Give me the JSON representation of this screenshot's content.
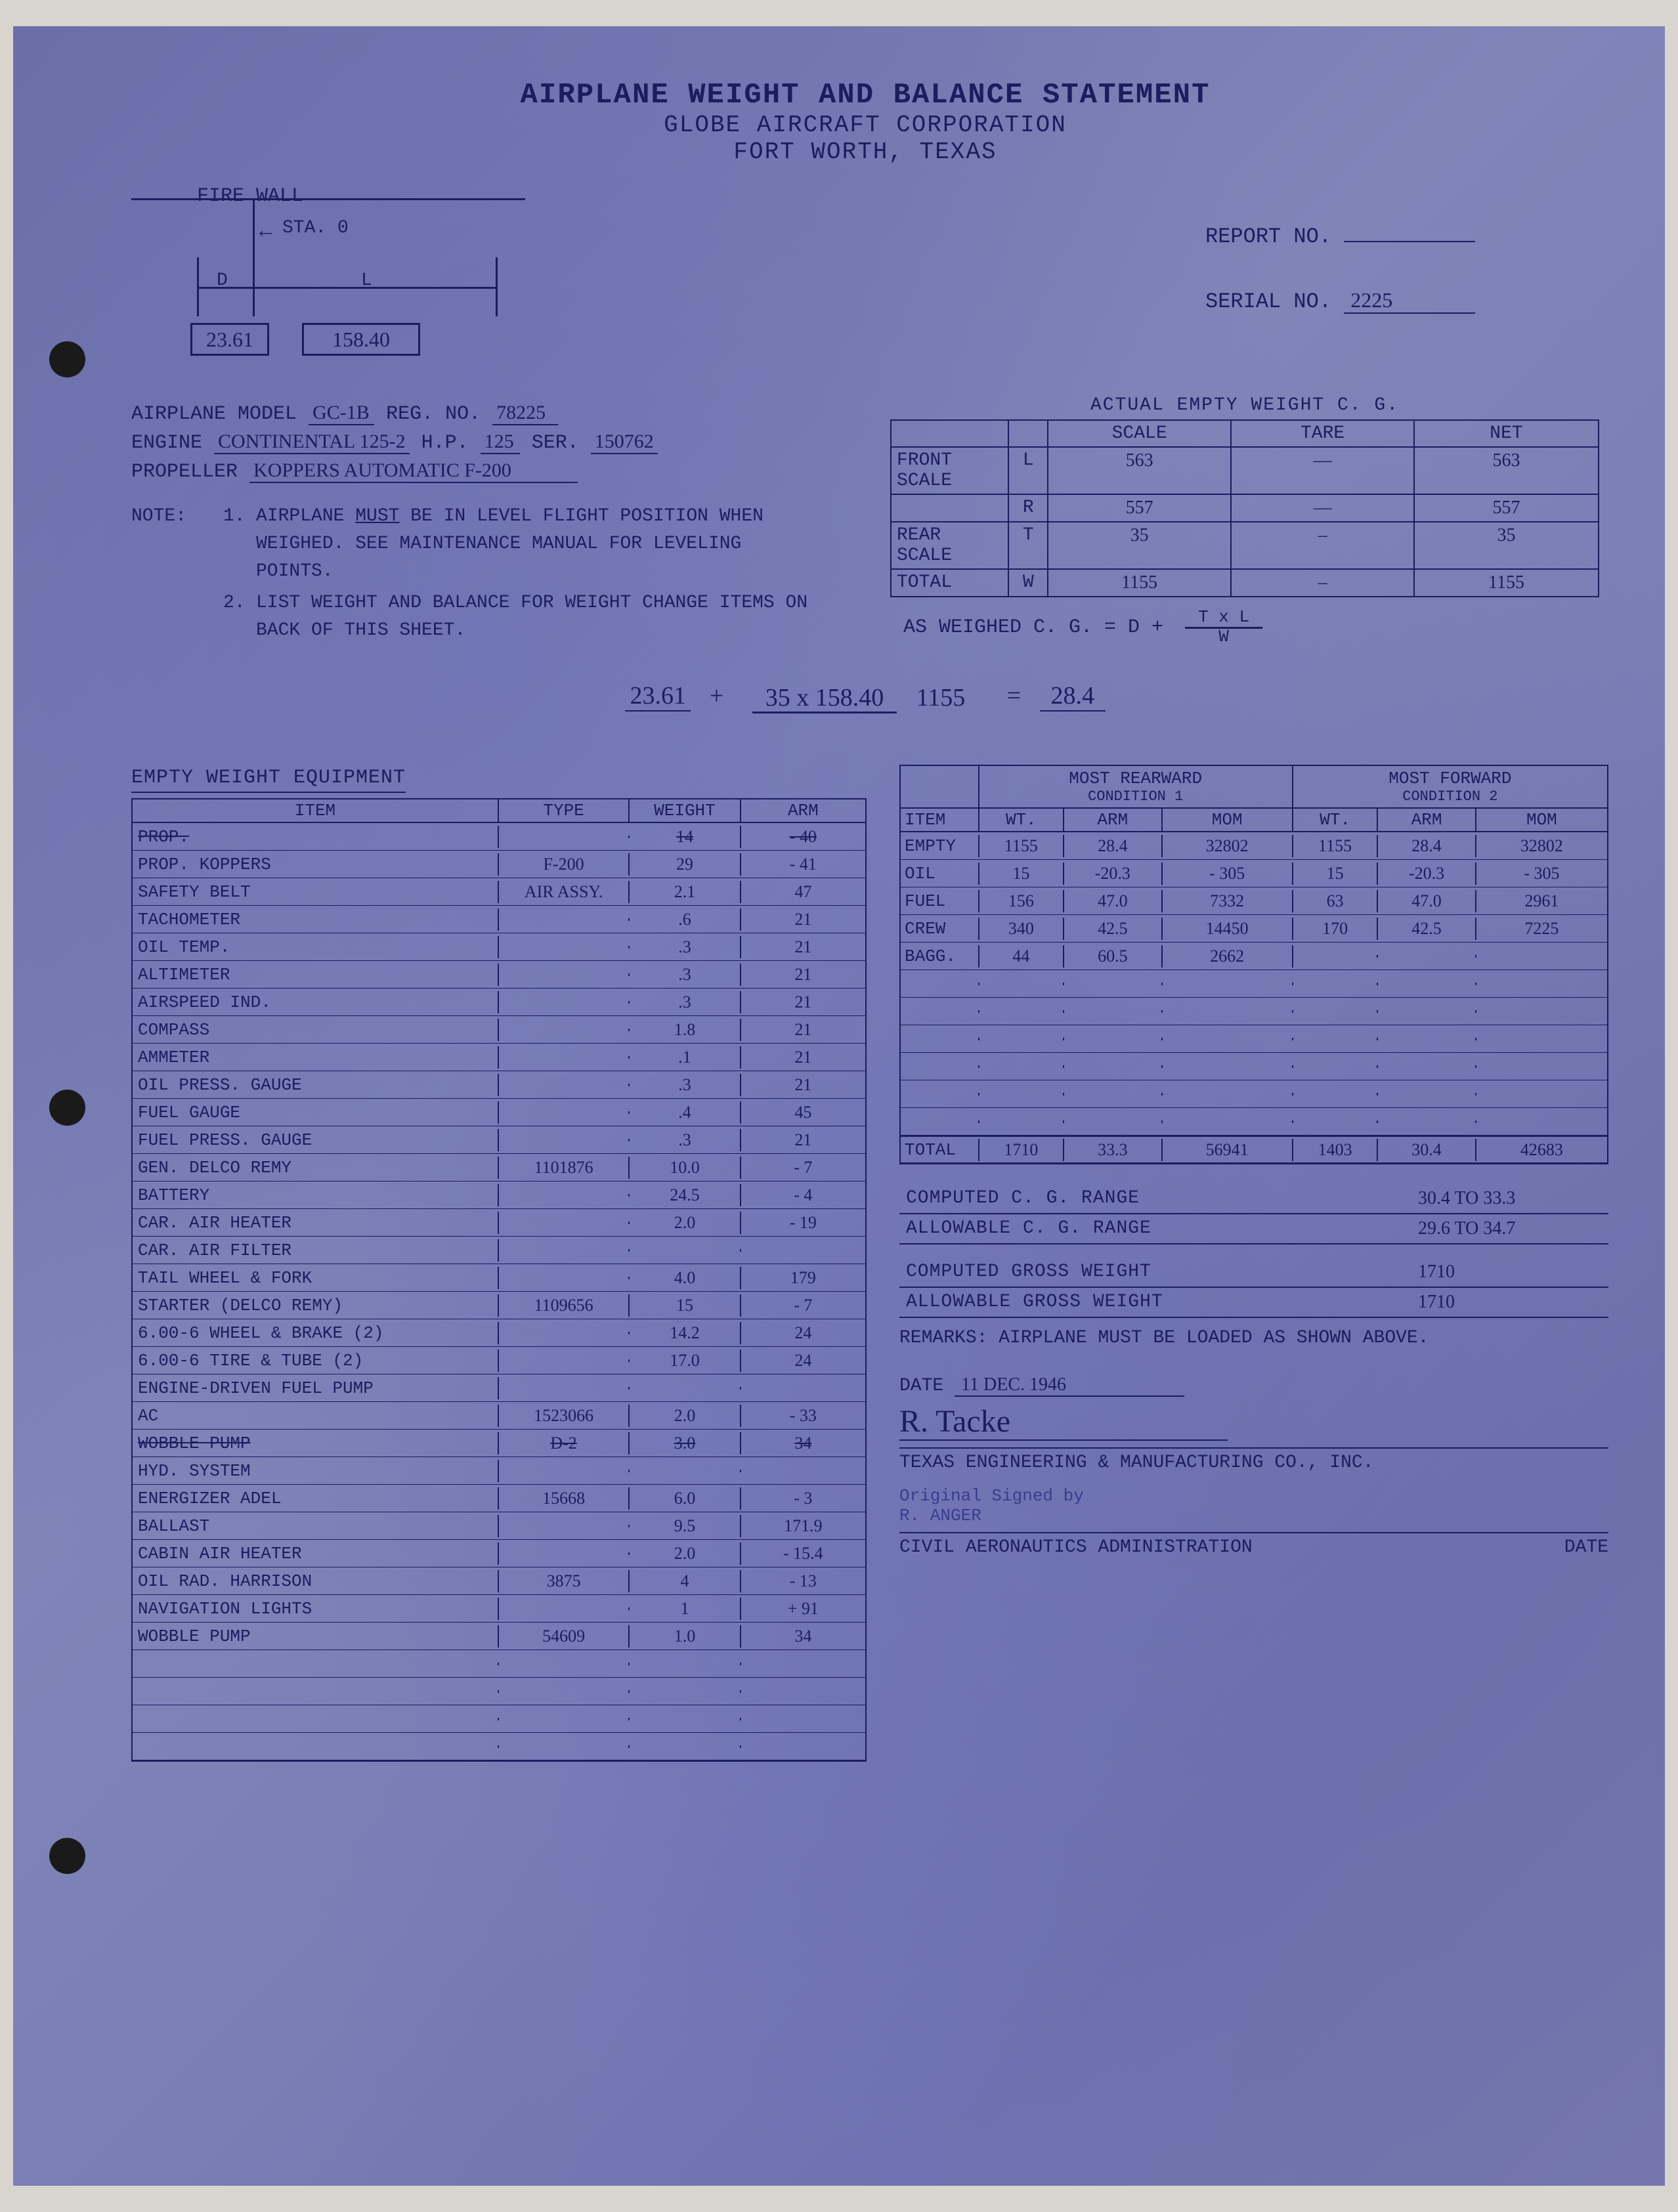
{
  "header": {
    "title": "AIRPLANE WEIGHT AND BALANCE STATEMENT",
    "sub1": "GLOBE AIRCRAFT CORPORATION",
    "sub2": "FORT WORTH, TEXAS"
  },
  "report": {
    "report_no_label": "REPORT NO.",
    "report_no": "",
    "serial_no_label": "SERIAL NO.",
    "serial_no": "2225"
  },
  "diagram": {
    "firewall": "FIRE WALL",
    "sta": "STA. 0",
    "d_label": "D",
    "l_label": "L",
    "d_value": "23.61",
    "l_value": "158.40"
  },
  "info": {
    "model_label": "AIRPLANE MODEL",
    "model": "GC-1B",
    "reg_label": "REG. NO.",
    "reg": "78225",
    "engine_label": "ENGINE",
    "engine": "CONTINENTAL 125-2",
    "hp_label": "H.P.",
    "hp": "125",
    "ser_label": "SER.",
    "ser": "150762",
    "prop_label": "PROPELLER",
    "prop": "KOPPERS AUTOMATIC F-200"
  },
  "notes": {
    "label": "NOTE:",
    "n1": "1.",
    "n1_text": "AIRPLANE MUST BE IN LEVEL FLIGHT POSITION WHEN WEIGHED. SEE MAINTENANCE MANUAL FOR LEVELING POINTS.",
    "n2": "2.",
    "n2_text": "LIST WEIGHT AND BALANCE FOR WEIGHT CHANGE ITEMS ON BACK OF THIS SHEET."
  },
  "weight_table": {
    "caption": "ACTUAL EMPTY WEIGHT C. G.",
    "h_scale": "SCALE",
    "h_tare": "TARE",
    "h_net": "NET",
    "rows": [
      {
        "label": "FRONT SCALE",
        "sub": "L",
        "scale": "563",
        "tare": "—",
        "net": "563"
      },
      {
        "label": "",
        "sub": "R",
        "scale": "557",
        "tare": "—",
        "net": "557"
      },
      {
        "label": "REAR SCALE",
        "sub": "T",
        "scale": "35",
        "tare": "–",
        "net": "35"
      },
      {
        "label": "TOTAL",
        "sub": "W",
        "scale": "1155",
        "tare": "–",
        "net": "1155"
      }
    ],
    "formula": "AS WEIGHED C. G. = D + ",
    "formula_frac_num": "T x L",
    "formula_frac_den": "W"
  },
  "calc": {
    "a": "23.61",
    "plus": "+",
    "num": "35 x 158.40",
    "den": "1155",
    "eq": "=",
    "result": "28.4"
  },
  "equip": {
    "caption": "EMPTY WEIGHT EQUIPMENT",
    "h_item": "ITEM",
    "h_type": "TYPE",
    "h_weight": "WEIGHT",
    "h_arm": "ARM",
    "rows": [
      {
        "item": "PROP.",
        "type": "",
        "weight": "14",
        "arm": "- 40",
        "struck": true
      },
      {
        "item": "PROP. KOPPERS",
        "type": "F-200",
        "weight": "29",
        "arm": "- 41"
      },
      {
        "item": "SAFETY BELT",
        "type": "AIR ASSY.",
        "weight": "2.1",
        "arm": "47"
      },
      {
        "item": "TACHOMETER",
        "type": "",
        "weight": ".6",
        "arm": "21"
      },
      {
        "item": "OIL TEMP.",
        "type": "",
        "weight": ".3",
        "arm": "21"
      },
      {
        "item": "ALTIMETER",
        "type": "",
        "weight": ".3",
        "arm": "21"
      },
      {
        "item": "AIRSPEED IND.",
        "type": "",
        "weight": ".3",
        "arm": "21"
      },
      {
        "item": "COMPASS",
        "type": "",
        "weight": "1.8",
        "arm": "21"
      },
      {
        "item": "AMMETER",
        "type": "",
        "weight": ".1",
        "arm": "21"
      },
      {
        "item": "OIL PRESS. GAUGE",
        "type": "",
        "weight": ".3",
        "arm": "21"
      },
      {
        "item": "FUEL GAUGE",
        "type": "",
        "weight": ".4",
        "arm": "45"
      },
      {
        "item": "FUEL PRESS. GAUGE",
        "type": "",
        "weight": ".3",
        "arm": "21"
      },
      {
        "item": "GEN. DELCO REMY",
        "type": "1101876",
        "weight": "10.0",
        "arm": "- 7"
      },
      {
        "item": "BATTERY",
        "type": "",
        "weight": "24.5",
        "arm": "- 4"
      },
      {
        "item": "CAR. AIR HEATER",
        "type": "",
        "weight": "2.0",
        "arm": "- 19"
      },
      {
        "item": "CAR. AIR FILTER",
        "type": "",
        "weight": "",
        "arm": ""
      },
      {
        "item": "TAIL WHEEL & FORK",
        "type": "",
        "weight": "4.0",
        "arm": "179"
      },
      {
        "item": "STARTER (DELCO REMY)",
        "type": "1109656",
        "weight": "15",
        "arm": "- 7"
      },
      {
        "item": "6.00-6 WHEEL & BRAKE (2)",
        "type": "",
        "weight": "14.2",
        "arm": "24"
      },
      {
        "item": "6.00-6 TIRE & TUBE (2)",
        "type": "",
        "weight": "17.0",
        "arm": "24"
      },
      {
        "item": "ENGINE-DRIVEN FUEL PUMP",
        "type": "",
        "weight": "",
        "arm": ""
      },
      {
        "item": "AC",
        "type": "1523066",
        "weight": "2.0",
        "arm": "- 33"
      },
      {
        "item": "WOBBLE PUMP",
        "type": "D-2",
        "weight": "3.0",
        "arm": "34",
        "struck": true
      },
      {
        "item": "HYD. SYSTEM",
        "type": "",
        "weight": "",
        "arm": ""
      },
      {
        "item": "ENERGIZER ADEL",
        "type": "15668",
        "weight": "6.0",
        "arm": "- 3"
      },
      {
        "item": "BALLAST",
        "type": "",
        "weight": "9.5",
        "arm": "171.9"
      },
      {
        "item": "CABIN AIR HEATER",
        "type": "",
        "weight": "2.0",
        "arm": "- 15.4"
      },
      {
        "item": "OIL RAD. HARRISON",
        "type": "3875",
        "weight": "4",
        "arm": "- 13"
      },
      {
        "item": "NAVIGATION LIGHTS",
        "type": "",
        "weight": "1",
        "arm": "+ 91"
      },
      {
        "item": "WOBBLE PUMP",
        "type": "54609",
        "weight": "1.0",
        "arm": "34"
      },
      {
        "item": "",
        "type": "",
        "weight": "",
        "arm": ""
      },
      {
        "item": "",
        "type": "",
        "weight": "",
        "arm": ""
      },
      {
        "item": "",
        "type": "",
        "weight": "",
        "arm": ""
      },
      {
        "item": "",
        "type": "",
        "weight": "",
        "arm": ""
      }
    ]
  },
  "cond": {
    "h_rear": "MOST REARWARD",
    "h_rear_sub": "CONDITION 1",
    "h_fwd": "MOST FORWARD",
    "h_fwd_sub": "CONDITION 2",
    "h_item": "ITEM",
    "h_wt": "WT.",
    "h_arm": "ARM",
    "h_mom": "MOM",
    "rows": [
      {
        "item": "EMPTY",
        "wt1": "1155",
        "arm1": "28.4",
        "mom1": "32802",
        "wt2": "1155",
        "arm2": "28.4",
        "mom2": "32802"
      },
      {
        "item": "OIL",
        "wt1": "15",
        "arm1": "-20.3",
        "mom1": "- 305",
        "wt2": "15",
        "arm2": "-20.3",
        "mom2": "- 305"
      },
      {
        "item": "FUEL",
        "wt1": "156",
        "arm1": "47.0",
        "mom1": "7332",
        "wt2": "63",
        "arm2": "47.0",
        "mom2": "2961"
      },
      {
        "item": "CREW",
        "wt1": "340",
        "arm1": "42.5",
        "mom1": "14450",
        "wt2": "170",
        "arm2": "42.5",
        "mom2": "7225"
      },
      {
        "item": "BAGG.",
        "wt1": "44",
        "arm1": "60.5",
        "mom1": "2662",
        "wt2": "",
        "arm2": "",
        "mom2": ""
      },
      {
        "item": "",
        "wt1": "",
        "arm1": "",
        "mom1": "",
        "wt2": "",
        "arm2": "",
        "mom2": ""
      },
      {
        "item": "",
        "wt1": "",
        "arm1": "",
        "mom1": "",
        "wt2": "",
        "arm2": "",
        "mom2": ""
      },
      {
        "item": "",
        "wt1": "",
        "arm1": "",
        "mom1": "",
        "wt2": "",
        "arm2": "",
        "mom2": ""
      },
      {
        "item": "",
        "wt1": "",
        "arm1": "",
        "mom1": "",
        "wt2": "",
        "arm2": "",
        "mom2": ""
      },
      {
        "item": "",
        "wt1": "",
        "arm1": "",
        "mom1": "",
        "wt2": "",
        "arm2": "",
        "mom2": ""
      },
      {
        "item": "",
        "wt1": "",
        "arm1": "",
        "mom1": "",
        "wt2": "",
        "arm2": "",
        "mom2": ""
      }
    ],
    "total": {
      "item": "TOTAL",
      "wt1": "1710",
      "arm1": "33.3",
      "mom1": "56941",
      "wt2": "1403",
      "arm2": "30.4",
      "mom2": "42683"
    }
  },
  "summary": {
    "cg_computed_label": "COMPUTED C. G. RANGE",
    "cg_computed": "30.4 TO 33.3",
    "cg_allowable_label": "ALLOWABLE C. G. RANGE",
    "cg_allowable": "29.6 TO 34.7",
    "gw_computed_label": "COMPUTED GROSS WEIGHT",
    "gw_computed": "1710",
    "gw_allowable_label": "ALLOWABLE GROSS WEIGHT",
    "gw_allowable": "1710",
    "remarks_label": "REMARKS:",
    "remarks": "AIRPLANE MUST BE LOADED AS SHOWN ABOVE."
  },
  "sig": {
    "date_label": "DATE",
    "date": "11 DEC. 1946",
    "signature": "R. Tacke",
    "company": "TEXAS ENGINEERING & MANUFACTURING CO., INC.",
    "orig": "Original Signed by",
    "orig_name": "R. ANGER",
    "caa": "CIVIL AERONAUTICS ADMINISTRATION",
    "caa_date": "DATE"
  }
}
